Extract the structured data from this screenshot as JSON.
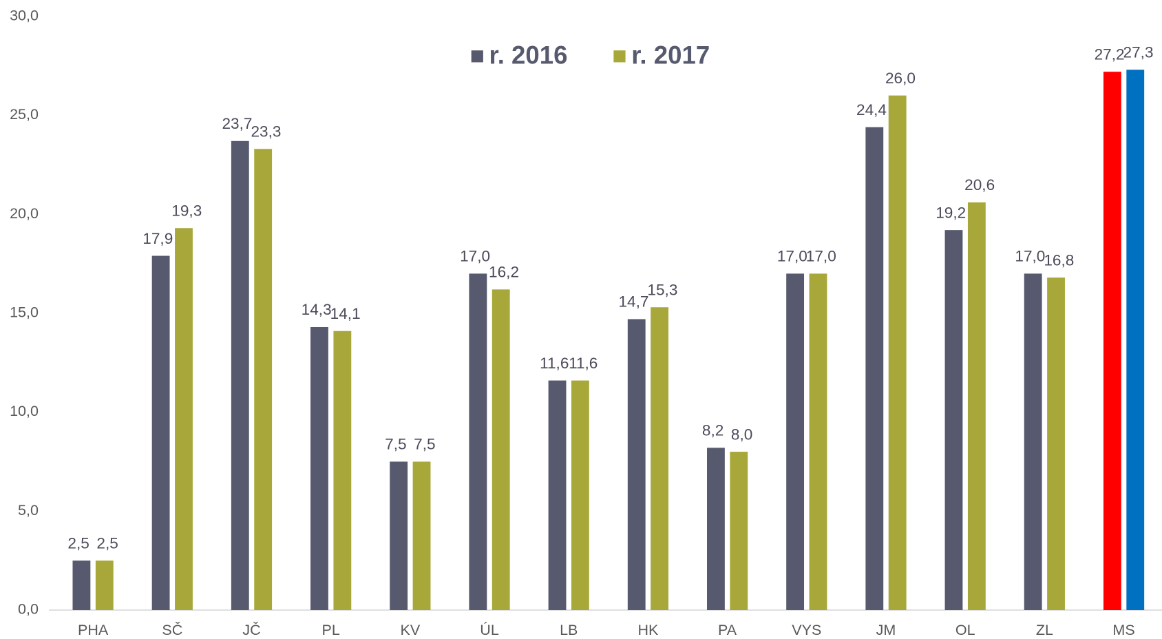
{
  "chart_data": {
    "type": "bar",
    "categories": [
      "PHA",
      "SČ",
      "JČ",
      "PL",
      "KV",
      "ÚL",
      "LB",
      "HK",
      "PA",
      "VYS",
      "JM",
      "OL",
      "ZL",
      "MS"
    ],
    "series": [
      {
        "name": "r. 2016",
        "color": "#575a6e",
        "colors": [
          "#575a6e",
          "#575a6e",
          "#575a6e",
          "#575a6e",
          "#575a6e",
          "#575a6e",
          "#575a6e",
          "#575a6e",
          "#575a6e",
          "#575a6e",
          "#575a6e",
          "#575a6e",
          "#575a6e",
          "#ff0000"
        ],
        "values": [
          2.5,
          17.9,
          23.7,
          14.3,
          7.5,
          17.0,
          11.6,
          14.7,
          8.2,
          17.0,
          24.4,
          19.2,
          17.0,
          27.2
        ],
        "value_labels": [
          "2,5",
          "17,9",
          "23,7",
          "14,3",
          "7,5",
          "17,0",
          "11,6",
          "14,7",
          "8,2",
          "17,0",
          "24,4",
          "19,2",
          "17,0",
          "27,2"
        ]
      },
      {
        "name": "r. 2017",
        "color": "#a8a83a",
        "colors": [
          "#a8a83a",
          "#a8a83a",
          "#a8a83a",
          "#a8a83a",
          "#a8a83a",
          "#a8a83a",
          "#a8a83a",
          "#a8a83a",
          "#a8a83a",
          "#a8a83a",
          "#a8a83a",
          "#a8a83a",
          "#a8a83a",
          "#0070c0"
        ],
        "values": [
          2.5,
          19.3,
          23.3,
          14.1,
          7.5,
          16.2,
          11.6,
          15.3,
          8.0,
          17.0,
          26.0,
          20.6,
          16.8,
          27.3
        ],
        "value_labels": [
          "2,5",
          "19,3",
          "23,3",
          "14,1",
          "7,5",
          "16,2",
          "11,6",
          "15,3",
          "8,0",
          "17,0",
          "26,0",
          "20,6",
          "16,8",
          "27,3"
        ]
      }
    ],
    "ylim": [
      0,
      30
    ],
    "yticks": [
      {
        "value": 0,
        "label": "0,0"
      },
      {
        "value": 5,
        "label": "5,0"
      },
      {
        "value": 10,
        "label": "10,0"
      },
      {
        "value": 15,
        "label": "15,0"
      },
      {
        "value": 20,
        "label": "20,0"
      },
      {
        "value": 25,
        "label": "25,0"
      },
      {
        "value": 30,
        "label": "30,0"
      }
    ],
    "grid": false,
    "legend": "top"
  }
}
